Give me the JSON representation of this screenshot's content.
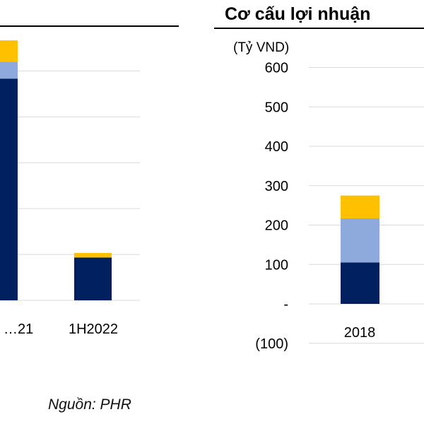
{
  "colors": {
    "navy": "#002060",
    "light_blue": "#8EA9DB",
    "gold": "#FFC000",
    "grid": "#d9d9d9",
    "rule": "#000000"
  },
  "source_note": "Nguồn: PHR",
  "chart_data": [
    {
      "type": "bar",
      "stacked": true,
      "title": "",
      "categories": [
        "…21",
        "1H2022"
      ],
      "series": [
        {
          "color": "#002060",
          "values": [
            725,
            140
          ]
        },
        {
          "color": "#8EA9DB",
          "values": [
            55,
            0
          ]
        },
        {
          "color": "#FFC000",
          "values": [
            70,
            15
          ]
        }
      ],
      "ylim": [
        0,
        1000
      ],
      "yticks_shown": false,
      "grid": true,
      "legend": "none"
    },
    {
      "type": "bar",
      "stacked": true,
      "title": "Cơ cấu lợi nhuận",
      "ylabel": "(Tỷ VND)",
      "categories": [
        "2018"
      ],
      "ytick_labels": [
        "600",
        "500",
        "400",
        "300",
        "200",
        "100",
        "-",
        "(100)"
      ],
      "ylim": [
        -100,
        600
      ],
      "series": [
        {
          "color": "#002060",
          "values": [
            105
          ]
        },
        {
          "color": "#8EA9DB",
          "values": [
            112
          ]
        },
        {
          "color": "#FFC000",
          "values": [
            58
          ]
        }
      ],
      "grid": true,
      "legend": "none"
    }
  ]
}
